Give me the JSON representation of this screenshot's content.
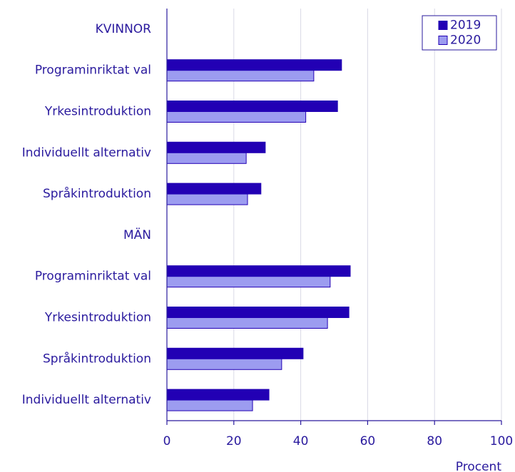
{
  "chart_data": {
    "type": "barh",
    "categories": [
      "KVINNOR",
      "Programinriktat val",
      "Yrkesintroduktion",
      "Individuellt alternativ",
      "Språkintroduktion",
      "MÄN",
      "Programinriktat val",
      "Yrkesintroduktion",
      "Språkintroduktion",
      "Individuellt alternativ"
    ],
    "series": [
      {
        "name": "2019",
        "color": "#2200b4",
        "values": [
          null,
          52.2,
          51.0,
          29.4,
          28.1,
          null,
          54.8,
          54.4,
          40.7,
          30.5
        ]
      },
      {
        "name": "2020",
        "color": "#9c9cf0",
        "values": [
          null,
          43.9,
          41.5,
          23.7,
          24.1,
          null,
          48.8,
          48.0,
          34.3,
          25.6
        ]
      }
    ],
    "xlabel": "Procent",
    "xlim": [
      0,
      100
    ],
    "xticks": [
      0,
      20,
      40,
      60,
      80,
      100
    ],
    "grid": true,
    "legend": "upper right"
  }
}
